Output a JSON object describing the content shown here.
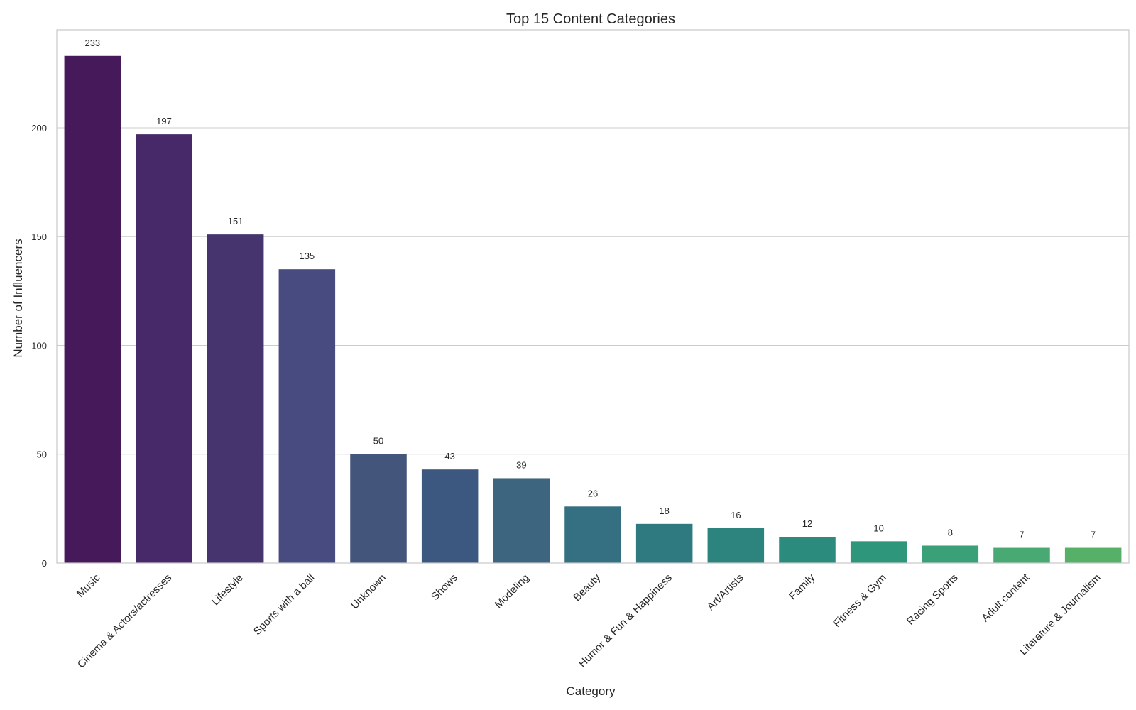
{
  "chart_data": {
    "type": "bar",
    "title": "Top 15 Content Categories",
    "xlabel": "Category",
    "ylabel": "Number of Influencers",
    "categories": [
      "Music",
      "Cinema & Actors/actresses",
      "Lifestyle",
      "Sports with a ball",
      "Unknown",
      "Shows",
      "Modeling",
      "Beauty",
      "Humor & Fun & Happiness",
      "Art/Artists",
      "Family",
      "Fitness & Gym",
      "Racing Sports",
      "Adult content",
      "Literature & Journalism"
    ],
    "values": [
      233,
      197,
      151,
      135,
      50,
      43,
      39,
      26,
      18,
      16,
      12,
      10,
      8,
      7,
      7
    ],
    "data_labels": [
      "233",
      "197",
      "151",
      "135",
      "50",
      "43",
      "39",
      "26",
      "18",
      "16",
      "12",
      "10",
      "8",
      "7",
      "7"
    ],
    "ylim": [
      0,
      245
    ],
    "yticks": [
      0,
      50,
      100,
      150,
      200
    ],
    "ytick_labels": [
      "0",
      "50",
      "100",
      "150",
      "200"
    ],
    "grid": "horizontal",
    "colors": [
      "#46195a",
      "#472868",
      "#46346f",
      "#484b80",
      "#44557c",
      "#3d5880",
      "#3d657f",
      "#347081",
      "#2f7a80",
      "#2d847e",
      "#2b8b7c",
      "#2e967a",
      "#3aa078",
      "#48a972",
      "#56b068"
    ]
  }
}
